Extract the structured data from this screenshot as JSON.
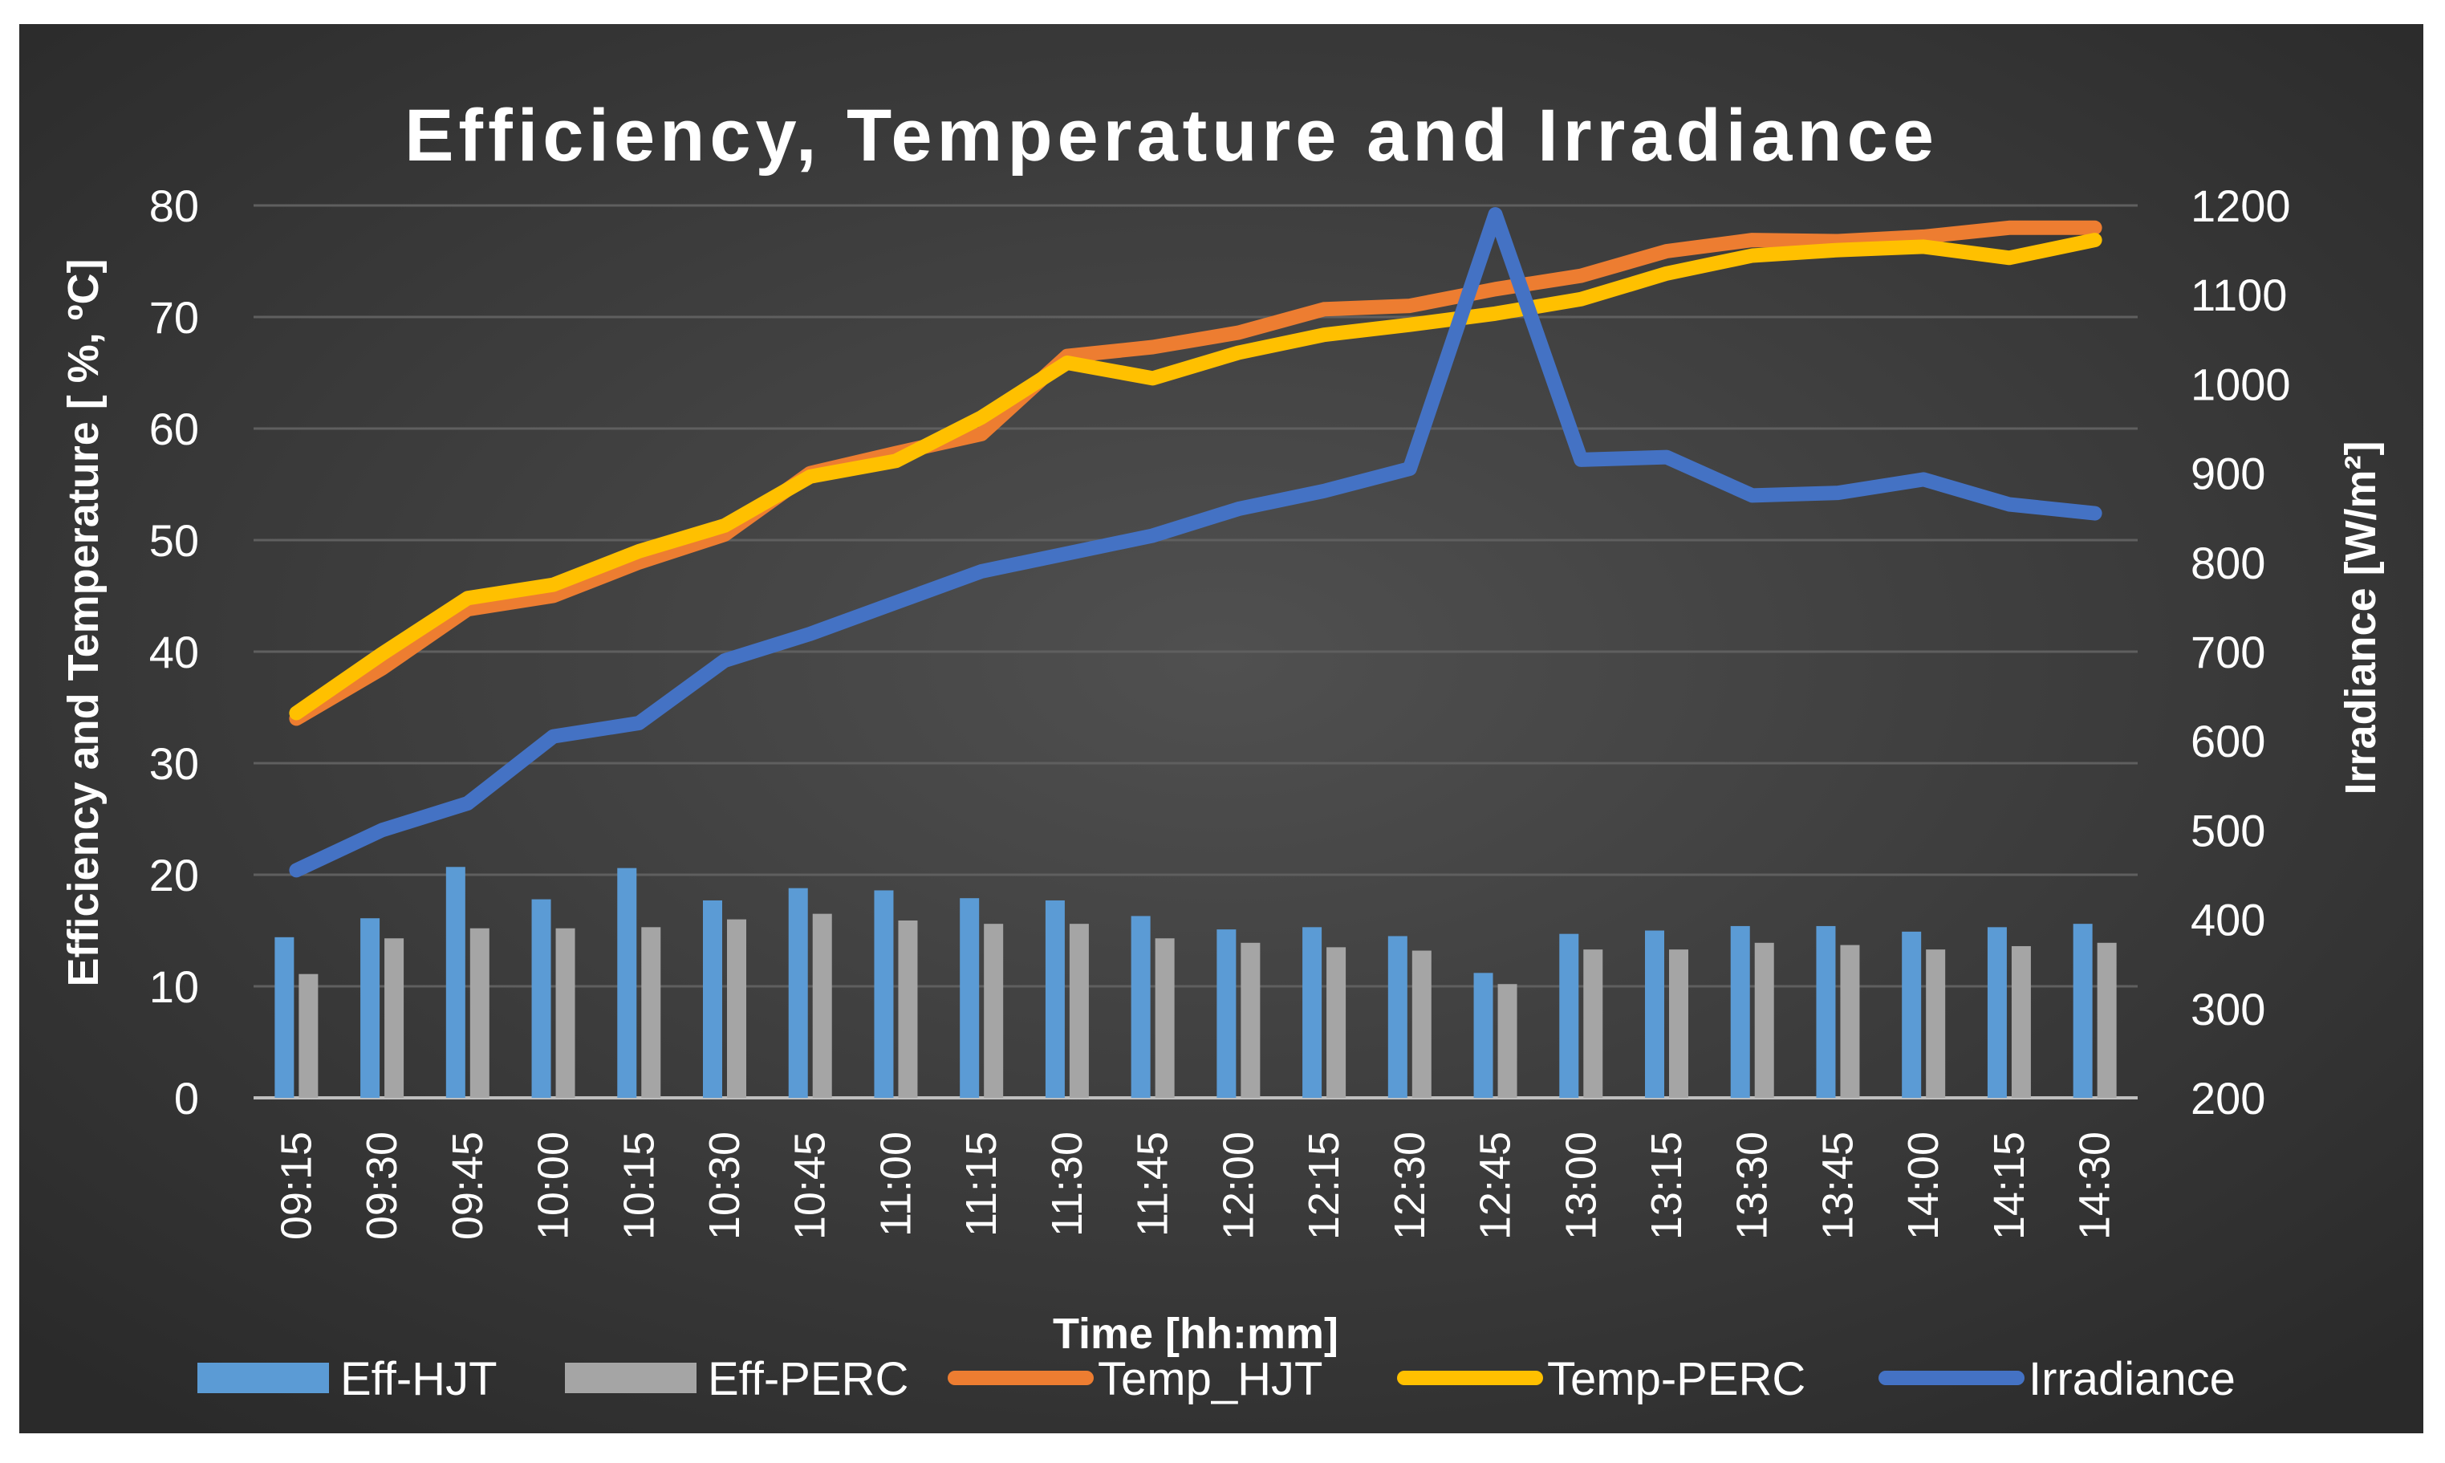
{
  "chart_data": {
    "type": "bar-line-combo",
    "title": "Efficiency, Temperature and Irradiance",
    "xlabel": "Time [hh:mm]",
    "ylabel_left": "Efficiency and Temperature [ %, ºC]",
    "ylabel_right": "Irradiance [W/m²]",
    "ylim_left": [
      0,
      80
    ],
    "yticks_left": [
      0,
      10,
      20,
      30,
      40,
      50,
      60,
      70,
      80
    ],
    "ylim_right": [
      200,
      1200
    ],
    "yticks_right": [
      200,
      300,
      400,
      500,
      600,
      700,
      800,
      900,
      1000,
      1100,
      1200
    ],
    "grid": true,
    "legend_position": "bottom",
    "categories": [
      "09:15",
      "09:30",
      "09:45",
      "10:00",
      "10:15",
      "10:30",
      "10:45",
      "11:00",
      "11:15",
      "11:30",
      "11:45",
      "12:00",
      "12:15",
      "12:30",
      "12:45",
      "13:00",
      "13:15",
      "13:30",
      "13:45",
      "14:00",
      "14:15",
      "14:30"
    ],
    "series": [
      {
        "name": "Eff-HJT",
        "kind": "bar",
        "axis": "left",
        "color": "#5b9bd5",
        "values": [
          14.4,
          16.1,
          20.7,
          17.8,
          20.6,
          17.7,
          18.8,
          18.6,
          17.9,
          17.7,
          16.3,
          15.1,
          15.3,
          14.5,
          11.2,
          14.7,
          15.0,
          15.4,
          15.4,
          14.9,
          15.3,
          15.6
        ]
      },
      {
        "name": "Eff-PERC",
        "kind": "bar",
        "axis": "left",
        "color": "#a5a5a5",
        "values": [
          11.1,
          14.3,
          15.2,
          15.2,
          15.3,
          16.0,
          16.5,
          15.9,
          15.6,
          15.6,
          14.3,
          13.9,
          13.5,
          13.2,
          10.2,
          13.3,
          13.3,
          13.9,
          13.7,
          13.3,
          13.6,
          13.9
        ]
      },
      {
        "name": "Temp_HJT",
        "kind": "line",
        "axis": "left",
        "color": "#ed7d31",
        "values": [
          34.0,
          38.5,
          43.8,
          45.0,
          48.0,
          50.5,
          56.0,
          57.8,
          59.5,
          66.5,
          67.3,
          68.6,
          70.7,
          71.0,
          72.5,
          73.7,
          75.9,
          76.9,
          76.8,
          77.2,
          78.0,
          78.0
        ]
      },
      {
        "name": "Temp-PERC",
        "kind": "line",
        "axis": "left",
        "color": "#ffc000",
        "values": [
          34.5,
          39.8,
          44.8,
          46.0,
          49.0,
          51.3,
          55.7,
          57.1,
          61.0,
          65.9,
          64.5,
          66.8,
          68.4,
          69.3,
          70.3,
          71.6,
          73.9,
          75.5,
          76.0,
          76.3,
          75.3,
          76.9
        ]
      },
      {
        "name": "Irradiance",
        "kind": "line",
        "axis": "right",
        "color": "#4472c4",
        "values": [
          455,
          500,
          530,
          605,
          620,
          690,
          720,
          755,
          790,
          810,
          830,
          860,
          880,
          905,
          1190,
          915,
          918,
          875,
          878,
          893,
          865,
          855
        ]
      }
    ]
  }
}
